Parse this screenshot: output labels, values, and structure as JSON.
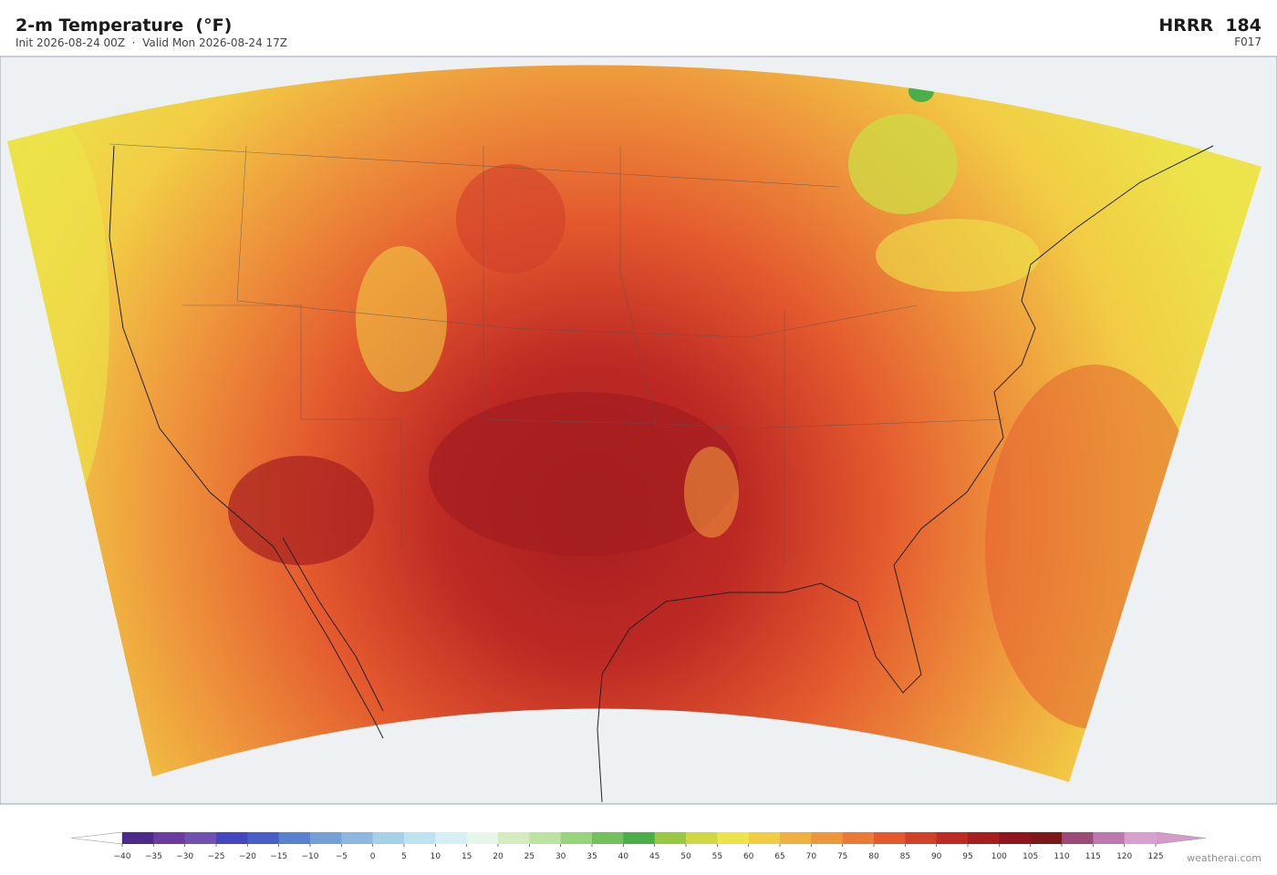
{
  "header": {
    "title": "2-m Temperature  (°F)",
    "subtitle": "Init 2026-08-24 00Z  ·  Valid Mon 2026-08-24 17Z",
    "model": "HRRR  184",
    "forecast_hour": "F017"
  },
  "colorbar": {
    "ticks": [
      {
        "value": -40,
        "label": "−40"
      },
      {
        "value": -35,
        "label": "−35"
      },
      {
        "value": -30,
        "label": "−30"
      },
      {
        "value": -25,
        "label": "−25"
      },
      {
        "value": -20,
        "label": "−20"
      },
      {
        "value": -15,
        "label": "−15"
      },
      {
        "value": -10,
        "label": "−10"
      },
      {
        "value": -5,
        "label": "−5"
      },
      0,
      5,
      10,
      15,
      20,
      25,
      30,
      35,
      40,
      45,
      50,
      55,
      60,
      65,
      70,
      75,
      80,
      85,
      90,
      95,
      100,
      105,
      110,
      115,
      120,
      125
    ],
    "colors": [
      "#4b2a8c",
      "#6a3ea0",
      "#7050b0",
      "#4545c0",
      "#4a5ec8",
      "#5a80d0",
      "#74a0d8",
      "#8cb8e0",
      "#a6d0e8",
      "#bde2f0",
      "#d6eef4",
      "#e6f6e8",
      "#d4ecc0",
      "#bce4a0",
      "#98d47c",
      "#74c05c",
      "#4cae48",
      "#98c844",
      "#cfd844",
      "#ece44a",
      "#f2cc44",
      "#f0b040",
      "#ee963c",
      "#ea7a36",
      "#e45a2e",
      "#d2402a",
      "#be2a24",
      "#a61e20",
      "#8e161c",
      "#7c1818",
      "#9c4a78",
      "#be78b0",
      "#d8a0cc"
    ],
    "under_color": "#ffffff",
    "over_color": "#d49ac8"
  },
  "watermark": "weatherai.com"
}
